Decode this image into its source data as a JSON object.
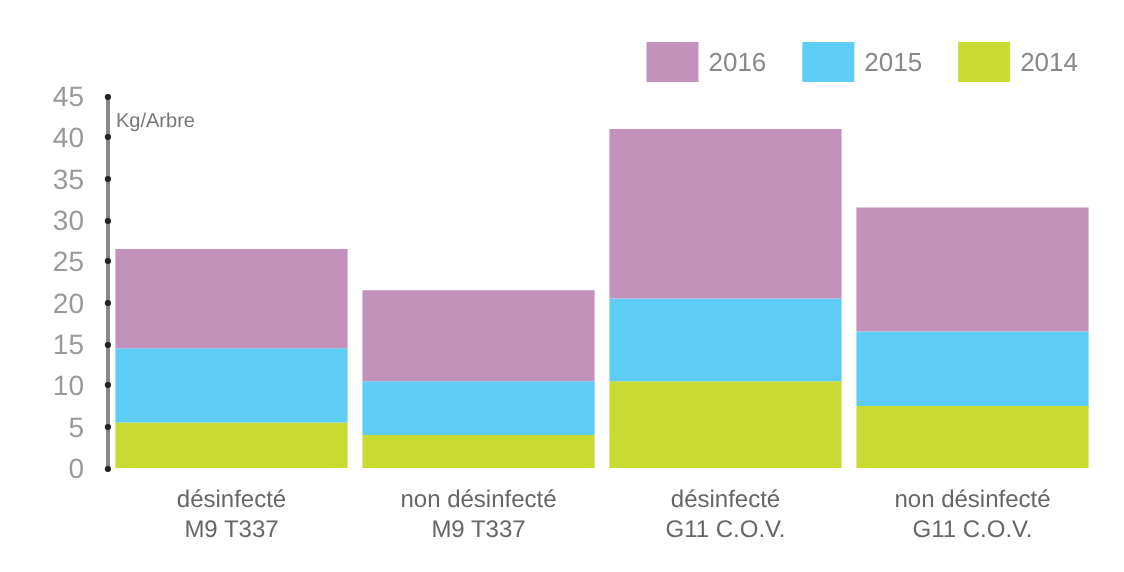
{
  "chart_data": {
    "type": "bar",
    "stacked": true,
    "ylabel": "Kg/Arbre",
    "categories": [
      "désinfecté\nM9 T337",
      "non désinfecté\nM9 T337",
      "désinfecté\nG11 C.O.V.",
      "non désinfecté\nG11 C.O.V."
    ],
    "series": [
      {
        "name": "2014",
        "color": "#c9da33",
        "values": [
          5.5,
          4,
          10.5,
          7.5
        ]
      },
      {
        "name": "2015",
        "color": "#5ecdf5",
        "values": [
          9,
          6.5,
          10,
          9
        ]
      },
      {
        "name": "2016",
        "color": "#c291bc",
        "values": [
          12,
          11,
          20.5,
          15
        ]
      }
    ],
    "ylim": [
      0,
      45
    ],
    "yticks": [
      0,
      5,
      10,
      15,
      20,
      25,
      30,
      35,
      40,
      45
    ],
    "grid": false,
    "legend": "top right"
  }
}
